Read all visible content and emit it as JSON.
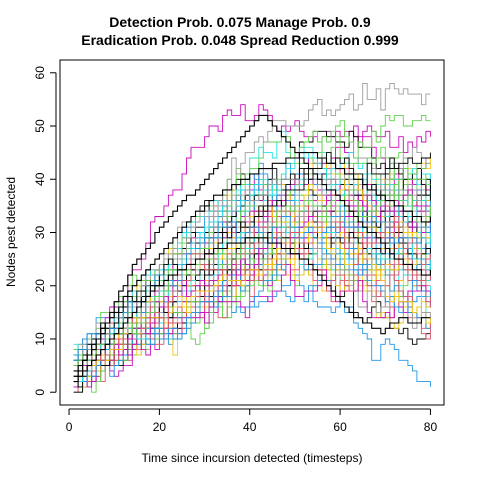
{
  "chart_data": {
    "type": "line",
    "title": "Detection Prob. 0.075 Manage Prob. 0.9",
    "subtitle": "Eradication Prob. 0.048 Spread Reduction 0.999",
    "xlabel": "Time since incursion detected (timesteps)",
    "ylabel": "Nodes pest detected",
    "xlim": [
      -2,
      83
    ],
    "ylim": [
      -2.4,
      62.4
    ],
    "xticks": [
      0,
      20,
      40,
      60,
      80
    ],
    "yticks": [
      0,
      10,
      20,
      30,
      40,
      50,
      60
    ],
    "grid": false,
    "legend": "none",
    "x": [
      1,
      80
    ],
    "series_count": 100,
    "series_colors": [
      "#000000",
      "#DF536B",
      "#61D04F",
      "#2297E6",
      "#28E2E5",
      "#CD0BBC",
      "#F5C710",
      "#9E9E9E"
    ],
    "highlight_series": [
      {
        "color": "#000000",
        "values": [
          3,
          4,
          6,
          7,
          8,
          10,
          12,
          13,
          15,
          17,
          19,
          20,
          22,
          24,
          25,
          26,
          27,
          28,
          30,
          31,
          32,
          33,
          34,
          35,
          36,
          37,
          37,
          38,
          39,
          40,
          41,
          42,
          43,
          44,
          45,
          46,
          47,
          48,
          49,
          50,
          51,
          52,
          52,
          51,
          50,
          49,
          48,
          47,
          46,
          45,
          44,
          43,
          42,
          41,
          40,
          39,
          38,
          38,
          37,
          36,
          35,
          34,
          33,
          32,
          31,
          30,
          30,
          29,
          28,
          27,
          26,
          25,
          25,
          24,
          24,
          23,
          23,
          22,
          22,
          23
        ]
      },
      {
        "color": "#000000",
        "values": [
          4,
          5,
          6,
          7,
          9,
          10,
          11,
          13,
          14,
          15,
          16,
          18,
          19,
          20,
          21,
          22,
          23,
          24,
          25,
          26,
          27,
          28,
          29,
          30,
          31,
          32,
          33,
          34,
          34,
          35,
          36,
          37,
          37,
          38,
          38,
          39,
          39,
          40,
          40,
          41,
          41,
          42,
          42,
          42,
          43,
          43,
          43,
          44,
          44,
          44,
          45,
          45,
          45,
          45,
          44,
          44,
          43,
          43,
          42,
          42,
          41,
          41,
          40,
          40,
          39,
          38,
          38,
          37,
          37,
          36,
          36,
          35,
          35,
          34,
          34,
          33,
          33,
          32,
          32,
          33
        ]
      },
      {
        "color": "#000000",
        "values": [
          2,
          3,
          4,
          5,
          6,
          7,
          8,
          9,
          10,
          11,
          12,
          13,
          14,
          15,
          16,
          17,
          18,
          19,
          20,
          20,
          21,
          22,
          22,
          23,
          23,
          24,
          24,
          25,
          25,
          26,
          26,
          27,
          27,
          27,
          28,
          28,
          28,
          28,
          29,
          29,
          29,
          29,
          29,
          28,
          28,
          28,
          27,
          27,
          26,
          26,
          25,
          25,
          24,
          23,
          22,
          21,
          20,
          19,
          18,
          17,
          16,
          15,
          14,
          14,
          13,
          13,
          12,
          12,
          11,
          12,
          13,
          13,
          14,
          14,
          13,
          13,
          13,
          14,
          14,
          14
        ]
      }
    ],
    "annotations": []
  }
}
